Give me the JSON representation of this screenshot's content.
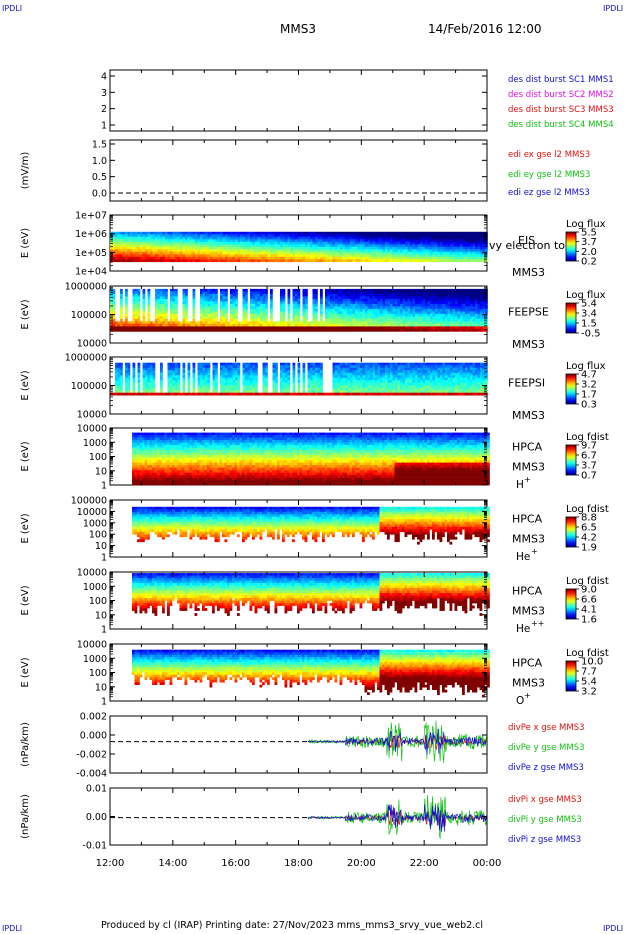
{
  "header": {
    "corner_label": "IPDLI",
    "mission": "MMS3",
    "datetime": "14/Feb/2016 12:00"
  },
  "footer": {
    "text": "Produced by cl (IRAP)   Printing date: 27/Nov/2023   mms_mms3_srvy_vue_web2.cl"
  },
  "colors": {
    "red": "#e01010",
    "green": "#10c010",
    "blue": "#1010d0",
    "magenta": "#e010e0"
  },
  "chart_data": {
    "type": "multi-panel time series",
    "x_ticks": [
      "12:00",
      "14:00",
      "16:00",
      "18:00",
      "20:00",
      "22:00",
      "00:00"
    ],
    "panels": [
      {
        "id": "burst",
        "type": "timeline",
        "yticks": [
          "4",
          "3",
          "2",
          "1"
        ],
        "legend": [
          {
            "text": "des dist burst SC1 MMS1",
            "color": "#1010d0"
          },
          {
            "text": "des dist burst SC2 MMS2",
            "color": "#e010e0"
          },
          {
            "text": "des dist burst SC3 MMS3",
            "color": "#e01010"
          },
          {
            "text": "des dist burst SC4 MMS4",
            "color": "#10c010"
          }
        ]
      },
      {
        "id": "edi",
        "type": "line",
        "ylabel": "(mV/m)",
        "yticks": [
          "1.5",
          "1.0",
          "0.5",
          "0.0"
        ],
        "legend": [
          {
            "text": "edi ex gse l2 MMS3",
            "color": "#e01010"
          },
          {
            "text": "edi ey gse l2 MMS3",
            "color": "#10c010"
          },
          {
            "text": "edi ez gse l2 MMS3",
            "color": "#1010d0"
          }
        ]
      },
      {
        "id": "eis",
        "type": "heatmap",
        "ylabel": "E (eV)",
        "yticks": [
          "1e+07",
          "1e+06",
          "1e+05",
          "1e+04"
        ],
        "labels": [
          "EIS",
          "MMS3"
        ],
        "overlay_text": "vy electron to",
        "cb_title": "Log flux",
        "cb_ticks": [
          "5.5",
          "3.7",
          "2.0",
          "0.2"
        ]
      },
      {
        "id": "feepse",
        "type": "heatmap",
        "ylabel": "E (eV)",
        "yticks": [
          "1000000",
          "100000",
          "10000"
        ],
        "labels": [
          "FEEPSE",
          "MMS3"
        ],
        "cb_title": "Log flux",
        "cb_ticks": [
          "5.4",
          "3.4",
          "1.5",
          "-0.5"
        ]
      },
      {
        "id": "feepsi",
        "type": "heatmap",
        "ylabel": "E (eV)",
        "yticks": [
          "1000000",
          "100000",
          "10000"
        ],
        "labels": [
          "FEEPSI",
          "MMS3"
        ],
        "cb_title": "Log flux",
        "cb_ticks": [
          "4.7",
          "3.2",
          "1.7",
          "0.3"
        ]
      },
      {
        "id": "hpca_h",
        "type": "heatmap",
        "ylabel": "E (eV)",
        "yticks": [
          "10000",
          "1000",
          "100",
          "10",
          "1"
        ],
        "labels": [
          "HPCA",
          "MMS3"
        ],
        "species": "H",
        "species_sup": "+",
        "cb_title": "Log fdist",
        "cb_ticks": [
          "9.7",
          "6.7",
          "3.7",
          "0.7"
        ]
      },
      {
        "id": "hpca_he",
        "type": "heatmap",
        "ylabel": "E (eV)",
        "yticks": [
          "100000",
          "10000",
          "1000",
          "100",
          "10",
          "1"
        ],
        "labels": [
          "HPCA",
          "MMS3"
        ],
        "species": "He",
        "species_sup": "+",
        "cb_title": "Log fdist",
        "cb_ticks": [
          "8.8",
          "6.5",
          "4.2",
          "1.9"
        ]
      },
      {
        "id": "hpca_hepp",
        "type": "heatmap",
        "ylabel": "E (eV)",
        "yticks": [
          "10000",
          "1000",
          "100",
          "10",
          "1"
        ],
        "labels": [
          "HPCA",
          "MMS3"
        ],
        "species": "He",
        "species_sup": "++",
        "cb_title": "Log fdist",
        "cb_ticks": [
          "9.0",
          "6.6",
          "4.1",
          "1.6"
        ]
      },
      {
        "id": "hpca_o",
        "type": "heatmap",
        "ylabel": "E (eV)",
        "yticks": [
          "10000",
          "1000",
          "100",
          "10",
          "1"
        ],
        "labels": [
          "HPCA",
          "MMS3"
        ],
        "species": "O",
        "species_sup": "+",
        "cb_title": "Log fdist",
        "cb_ticks": [
          "10.0",
          "7.7",
          "5.4",
          "3.2"
        ]
      },
      {
        "id": "divpe",
        "type": "line",
        "ylabel": "(nPa/km)",
        "yticks": [
          "0.002",
          "0.000",
          "-0.002",
          "-0.004"
        ],
        "legend": [
          {
            "text": "divPe x gse MMS3",
            "color": "#e01010"
          },
          {
            "text": "divPe y gse MMS3",
            "color": "#10c010"
          },
          {
            "text": "divPe z gse MMS3",
            "color": "#1010d0"
          }
        ]
      },
      {
        "id": "divpi",
        "type": "line",
        "ylabel": "(nPa/km)",
        "yticks": [
          "0.01",
          "0.00",
          "-0.01"
        ],
        "legend": [
          {
            "text": "divPi x gse MMS3",
            "color": "#e01010"
          },
          {
            "text": "divPi y gse MMS3",
            "color": "#10c010"
          },
          {
            "text": "divPi z gse MMS3",
            "color": "#1010d0"
          }
        ]
      }
    ]
  }
}
